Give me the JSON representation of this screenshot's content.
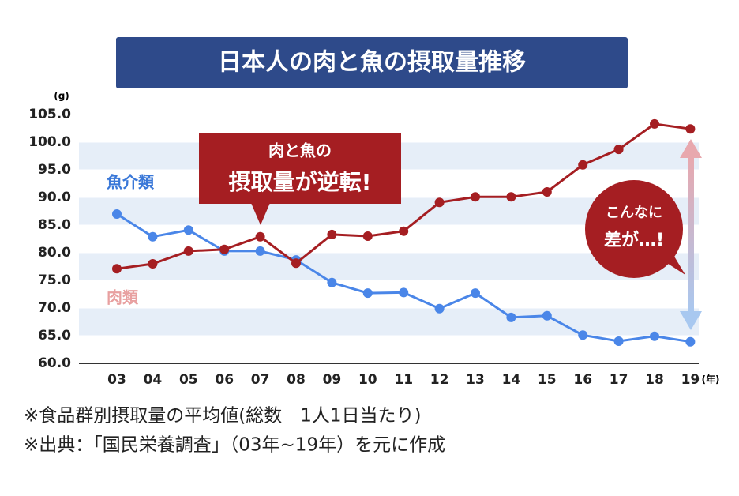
{
  "chart_data": {
    "type": "line",
    "title": "日本人の肉と魚の摂取量推移",
    "y_unit": "(g)",
    "x_unit": "(年)",
    "categories": [
      "03",
      "04",
      "05",
      "06",
      "07",
      "08",
      "09",
      "10",
      "11",
      "12",
      "13",
      "14",
      "15",
      "16",
      "17",
      "18",
      "19"
    ],
    "series": [
      {
        "name": "魚介類",
        "color": "#4a86e8",
        "label_color": "#3a78d8",
        "values": [
          87.0,
          82.9,
          84.1,
          80.3,
          80.3,
          78.7,
          74.6,
          72.7,
          72.8,
          69.9,
          72.7,
          68.3,
          68.6,
          65.1,
          64.0,
          64.9,
          63.9
        ]
      },
      {
        "name": "肉類",
        "color": "#a51e22",
        "label_color": "#e8a0a0",
        "values": [
          77.1,
          78.0,
          80.3,
          80.6,
          82.9,
          78.1,
          83.3,
          83.0,
          83.9,
          89.1,
          90.1,
          90.1,
          91.0,
          95.9,
          98.7,
          103.3,
          102.4
        ]
      }
    ],
    "ylim": [
      60,
      105
    ],
    "yticks": [
      {
        "value": 60,
        "label": "60.0"
      },
      {
        "value": 65,
        "label": "65.0"
      },
      {
        "value": 70,
        "label": "70.0"
      },
      {
        "value": 75,
        "label": "75.0"
      },
      {
        "value": 80,
        "label": "80.0"
      },
      {
        "value": 85,
        "label": "85.0"
      },
      {
        "value": 90,
        "label": "90.0"
      },
      {
        "value": 95,
        "label": "95.0"
      },
      {
        "value": 100,
        "label": "100.0"
      },
      {
        "value": 105,
        "label": "105.0"
      }
    ],
    "callout": [
      "肉と魚の",
      "摂取量が逆転!"
    ],
    "bubble": [
      "こんなに",
      "差が…!"
    ],
    "notes": [
      "※食品群別摂取量の平均値(総数　1人1日当たり)",
      "※出典：「国民栄養調査」（03年~19年）を元に作成"
    ]
  }
}
